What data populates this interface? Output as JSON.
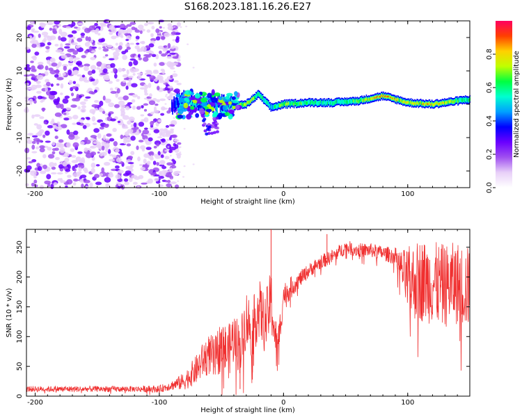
{
  "title": "S168.2023.181.16.26.E27",
  "colors": {
    "snr_line": "#f03030",
    "background": "#ffffff",
    "colormap": [
      "#ffffff",
      "#e8d0f8",
      "#a050f0",
      "#6a00ff",
      "#0000ff",
      "#00a0ff",
      "#00ffd0",
      "#00ff40",
      "#c0ff00",
      "#ffd000",
      "#ff4000",
      "#ff0060"
    ]
  },
  "chart_data": [
    {
      "type": "heatmap",
      "title": "",
      "xlabel": "Height of straight line (km)",
      "ylabel": "Frequency (Hz)",
      "xlim": [
        -207,
        150
      ],
      "ylim": [
        -25,
        25
      ],
      "xticks": [
        -200,
        -100,
        0,
        100
      ],
      "yticks": [
        -20,
        -10,
        0,
        10,
        20
      ],
      "grid": false,
      "ridge": {
        "description_values_x_km": [
          -90,
          -80,
          -70,
          -60,
          -50,
          -40,
          -30,
          -20,
          -10,
          0,
          20,
          40,
          60,
          80,
          90,
          100,
          120,
          150
        ],
        "frequency_hz": [
          0,
          1,
          0.5,
          0,
          0,
          -0.5,
          0,
          3,
          -1,
          0,
          0.5,
          0.5,
          1,
          2.5,
          1.5,
          0.5,
          0,
          1.5
        ],
        "amplitude": [
          0.3,
          0.5,
          0.55,
          0.5,
          0.45,
          0.55,
          0.75,
          0.6,
          0.5,
          0.7,
          0.6,
          0.55,
          0.65,
          0.85,
          0.8,
          0.7,
          0.85,
          0.55
        ]
      },
      "noise_region_km": [
        -207,
        -92
      ],
      "colorbar": {
        "label": "Normalized spectral amplitude",
        "range": [
          0,
          1
        ],
        "ticks": [
          0.0,
          0.2,
          0.4,
          0.6,
          0.8
        ]
      }
    },
    {
      "type": "line",
      "title": "",
      "xlabel": "Height of straight line (km)",
      "ylabel": "SNR (10 * v/v)",
      "xlim": [
        -207,
        150
      ],
      "ylim": [
        0,
        280
      ],
      "xticks": [
        -200,
        -100,
        0,
        100
      ],
      "yticks": [
        0,
        50,
        100,
        150,
        200,
        250
      ],
      "grid": false,
      "series": [
        {
          "x": [
            -207,
            -180,
            -150,
            -120,
            -100,
            -90,
            -80,
            -75,
            -70,
            -65,
            -60,
            -55,
            -50,
            -45,
            -40,
            -35,
            -30,
            -25,
            -20,
            -15,
            -10,
            -5,
            0,
            5,
            10,
            20,
            30,
            40,
            50,
            60,
            70,
            80,
            90,
            95,
            100,
            110,
            120,
            130,
            140,
            150
          ],
          "y": [
            12,
            12,
            12,
            12,
            12,
            18,
            25,
            35,
            45,
            60,
            70,
            60,
            90,
            70,
            100,
            80,
            130,
            110,
            150,
            120,
            160,
            70,
            170,
            180,
            190,
            210,
            225,
            235,
            250,
            245,
            245,
            240,
            235,
            215,
            190,
            195,
            190,
            185,
            190,
            180
          ],
          "spread": [
            5,
            5,
            5,
            5,
            6,
            8,
            15,
            20,
            25,
            30,
            35,
            40,
            45,
            45,
            45,
            45,
            50,
            50,
            50,
            50,
            55,
            40,
            20,
            20,
            15,
            12,
            12,
            12,
            12,
            12,
            12,
            12,
            15,
            30,
            60,
            70,
            70,
            70,
            70,
            70
          ],
          "spikes": [
            [
              -10,
              280
            ],
            [
              35,
              272
            ],
            [
              -25,
              40
            ],
            [
              -35,
              12
            ]
          ]
        }
      ]
    }
  ]
}
